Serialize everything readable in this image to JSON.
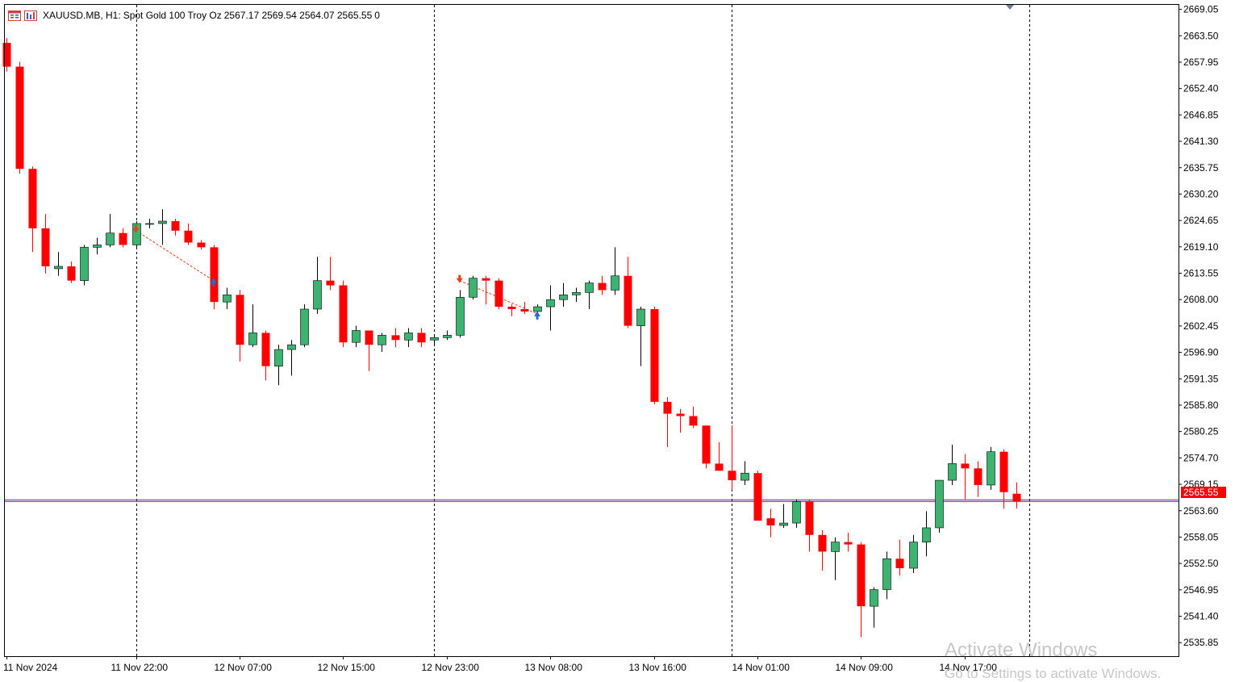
{
  "header": {
    "symbol": "XAUUSD.MB, H1:",
    "description": "Spot Gold 100 Troy Oz",
    "ohlc": "2567.17 2569.54 2564.07 2565.55",
    "volume": "0"
  },
  "watermark": {
    "line1": "Activate Windows",
    "line2": "Go to Settings to activate Windows."
  },
  "colors": {
    "bull": "#3cb371",
    "bear": "#ff0000",
    "grid": "#000000",
    "price_line": "#c0001a",
    "ask_line": "#4040c0",
    "sell_marker": "#e8401c",
    "buy_marker": "#1e6fd0"
  },
  "chart_data": {
    "type": "candlestick",
    "symbol": "XAUUSD.MB",
    "timeframe": "H1",
    "y_range": [
      2533,
      2670
    ],
    "y_ticks": [
      "2669.05",
      "2663.50",
      "2657.95",
      "2652.40",
      "2646.85",
      "2641.30",
      "2635.75",
      "2630.20",
      "2624.65",
      "2619.10",
      "2613.55",
      "2608.00",
      "2602.45",
      "2596.90",
      "2591.35",
      "2585.80",
      "2580.25",
      "2574.70",
      "2569.15",
      "2563.60",
      "2558.05",
      "2552.50",
      "2546.95",
      "2541.40",
      "2535.85"
    ],
    "x_labels": [
      {
        "index": 0,
        "label": "11 Nov 2024"
      },
      {
        "index": 10,
        "label": "11 Nov 22:00"
      },
      {
        "index": 18,
        "label": "12 Nov 07:00"
      },
      {
        "index": 26,
        "label": "12 Nov 15:00"
      },
      {
        "index": 34,
        "label": "12 Nov 23:00"
      },
      {
        "index": 42,
        "label": "13 Nov 08:00"
      },
      {
        "index": 50,
        "label": "13 Nov 16:00"
      },
      {
        "index": 58,
        "label": "14 Nov 01:00"
      },
      {
        "index": 66,
        "label": "14 Nov 09:00"
      },
      {
        "index": 74,
        "label": "14 Nov 17:00"
      }
    ],
    "period_separators": [
      10,
      33,
      56,
      79
    ],
    "current_price": "2565.55",
    "candles": [
      [
        2662.0,
        2663.0,
        2656.0,
        2657.0
      ],
      [
        2657.0,
        2658.0,
        2634.5,
        2635.5
      ],
      [
        2635.5,
        2636.0,
        2618.0,
        2623.0
      ],
      [
        2623.0,
        2626.0,
        2613.5,
        2615.0
      ],
      [
        2614.5,
        2618.0,
        2613.0,
        2615.0
      ],
      [
        2615.0,
        2616.0,
        2611.5,
        2612.0
      ],
      [
        2612.0,
        2619.5,
        2611.0,
        2619.0
      ],
      [
        2619.0,
        2621.0,
        2617.5,
        2619.5
      ],
      [
        2619.5,
        2626.0,
        2619.0,
        2622.0
      ],
      [
        2622.0,
        2623.0,
        2619.0,
        2619.5
      ],
      [
        2619.5,
        2624.5,
        2619.0,
        2624.0
      ],
      [
        2624.0,
        2625.0,
        2623.0,
        2624.0
      ],
      [
        2624.0,
        2627.0,
        2619.5,
        2624.5
      ],
      [
        2624.5,
        2625.0,
        2621.5,
        2622.5
      ],
      [
        2622.5,
        2624.0,
        2619.5,
        2620.0
      ],
      [
        2620.0,
        2620.5,
        2618.5,
        2619.0
      ],
      [
        2619.0,
        2619.5,
        2606.0,
        2607.5
      ],
      [
        2607.5,
        2610.5,
        2606.0,
        2609.0
      ],
      [
        2609.0,
        2610.0,
        2595.0,
        2598.5
      ],
      [
        2598.5,
        2607.0,
        2598.0,
        2601.0
      ],
      [
        2601.0,
        2601.5,
        2591.0,
        2594.0
      ],
      [
        2594.0,
        2598.5,
        2590.0,
        2597.5
      ],
      [
        2597.5,
        2599.5,
        2592.0,
        2598.5
      ],
      [
        2598.5,
        2607.0,
        2598.0,
        2606.0
      ],
      [
        2606.0,
        2617.0,
        2605.0,
        2612.0
      ],
      [
        2612.0,
        2617.0,
        2610.0,
        2611.0
      ],
      [
        2611.0,
        2612.0,
        2598.0,
        2599.0
      ],
      [
        2599.0,
        2602.5,
        2598.0,
        2601.5
      ],
      [
        2601.5,
        2601.5,
        2593.0,
        2598.5
      ],
      [
        2598.5,
        2601.0,
        2597.0,
        2600.5
      ],
      [
        2600.5,
        2602.0,
        2598.0,
        2599.5
      ],
      [
        2599.5,
        2602.0,
        2598.0,
        2601.0
      ],
      [
        2601.0,
        2602.0,
        2598.0,
        2599.0
      ],
      [
        2599.5,
        2600.5,
        2598.5,
        2600.0
      ],
      [
        2600.0,
        2601.5,
        2599.5,
        2600.5
      ],
      [
        2600.5,
        2610.0,
        2600.0,
        2608.5
      ],
      [
        2608.5,
        2613.0,
        2608.0,
        2612.5
      ],
      [
        2612.5,
        2613.0,
        2607.0,
        2612.0
      ],
      [
        2612.0,
        2612.5,
        2606.0,
        2606.5
      ],
      [
        2606.5,
        2607.0,
        2604.5,
        2606.0
      ],
      [
        2606.0,
        2607.5,
        2605.0,
        2605.5
      ],
      [
        2605.5,
        2607.0,
        2604.5,
        2606.5
      ],
      [
        2606.5,
        2611.0,
        2601.5,
        2608.0
      ],
      [
        2608.0,
        2611.5,
        2606.5,
        2609.0
      ],
      [
        2609.0,
        2610.5,
        2607.5,
        2609.5
      ],
      [
        2609.5,
        2612.0,
        2606.0,
        2611.5
      ],
      [
        2611.5,
        2613.0,
        2609.0,
        2610.0
      ],
      [
        2610.0,
        2619.0,
        2609.0,
        2613.0
      ],
      [
        2613.0,
        2617.0,
        2602.0,
        2602.5
      ],
      [
        2602.5,
        2606.5,
        2594.0,
        2606.0
      ],
      [
        2606.0,
        2606.5,
        2586.0,
        2586.5
      ],
      [
        2586.5,
        2587.5,
        2577.0,
        2584.0
      ],
      [
        2584.0,
        2585.0,
        2580.0,
        2583.5
      ],
      [
        2583.5,
        2585.5,
        2581.0,
        2581.5
      ],
      [
        2581.5,
        2581.5,
        2572.5,
        2573.5
      ],
      [
        2573.5,
        2578.0,
        2572.0,
        2572.0
      ],
      [
        2572.0,
        2581.5,
        2568.0,
        2570.0
      ],
      [
        2570.0,
        2574.0,
        2569.0,
        2571.5
      ],
      [
        2571.5,
        2572.0,
        2562.0,
        2561.5
      ],
      [
        2562.0,
        2564.0,
        2558.0,
        2560.5
      ],
      [
        2560.5,
        2565.0,
        2560.0,
        2561.0
      ],
      [
        2561.0,
        2566.0,
        2560.0,
        2565.5
      ],
      [
        2565.5,
        2566.0,
        2555.0,
        2558.5
      ],
      [
        2558.5,
        2559.5,
        2551.0,
        2555.0
      ],
      [
        2555.0,
        2558.0,
        2549.0,
        2557.0
      ],
      [
        2557.0,
        2559.0,
        2555.0,
        2556.5
      ],
      [
        2556.5,
        2557.0,
        2537.0,
        2543.5
      ],
      [
        2543.5,
        2547.5,
        2539.0,
        2547.0
      ],
      [
        2547.0,
        2555.0,
        2545.0,
        2553.5
      ],
      [
        2553.5,
        2557.5,
        2550.0,
        2551.5
      ],
      [
        2551.5,
        2558.5,
        2550.5,
        2557.0
      ],
      [
        2557.0,
        2563.5,
        2554.0,
        2560.0
      ],
      [
        2560.0,
        2570.0,
        2559.0,
        2570.0
      ],
      [
        2570.0,
        2577.5,
        2569.0,
        2573.5
      ],
      [
        2573.5,
        2575.5,
        2566.0,
        2572.5
      ],
      [
        2572.5,
        2574.0,
        2566.5,
        2569.0
      ],
      [
        2569.0,
        2577.0,
        2568.0,
        2576.0
      ],
      [
        2576.0,
        2576.5,
        2564.0,
        2567.5
      ],
      [
        2567.17,
        2569.54,
        2564.07,
        2565.55
      ]
    ],
    "trades": [
      {
        "type": "sell",
        "index": 10,
        "price": 2622.5
      },
      {
        "type": "buy",
        "index": 16,
        "price": 2612.0
      },
      {
        "type": "sell",
        "index": 35,
        "price": 2612.0
      },
      {
        "type": "buy",
        "index": 41,
        "price": 2605.0
      }
    ]
  }
}
